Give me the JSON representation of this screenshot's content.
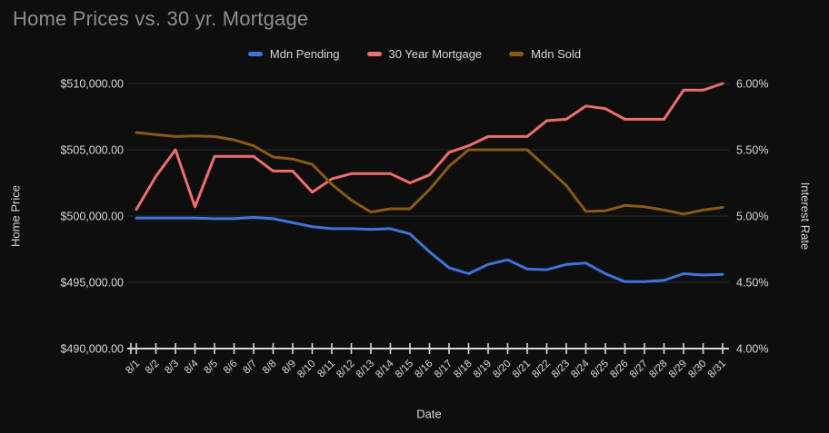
{
  "title": "Home Prices vs. 30 yr. Mortgage",
  "axes": {
    "left_title": "Home Price",
    "right_title": "Interest Rate",
    "x_title": "Date",
    "left_tick_labels": [
      "$490,000.00",
      "$495,000.00",
      "$500,000.00",
      "$505,000.00",
      "$510,000.00"
    ],
    "right_tick_labels": [
      "4.00%",
      "4.50%",
      "5.00%",
      "5.50%",
      "6.00%"
    ]
  },
  "colors": {
    "background": "#0e0e0e",
    "title_text": "#8e8e8e",
    "label_text": "#d8d8d8",
    "grid_line": "#2e2e2e",
    "axis_line": "#d8d8d8",
    "mdn_pending": "#3d74dc",
    "mortgage_30yr": "#ed6e6e",
    "mdn_sold": "#8a5a12"
  },
  "chart_data": {
    "type": "line",
    "title": "Home Prices vs. 30 yr. Mortgage",
    "xlabel": "Date",
    "ylabel_left": "Home Price",
    "ylabel_right": "Interest Rate",
    "legend_position": "top",
    "grid": "horizontal-only",
    "x": [
      "8/1",
      "8/2",
      "8/3",
      "8/4",
      "8/5",
      "8/6",
      "8/7",
      "8/8",
      "8/9",
      "8/10",
      "8/11",
      "8/12",
      "8/13",
      "8/14",
      "8/15",
      "8/16",
      "8/17",
      "8/18",
      "8/19",
      "8/20",
      "8/21",
      "8/22",
      "8/23",
      "8/24",
      "8/25",
      "8/26",
      "8/27",
      "8/28",
      "8/29",
      "8/30",
      "8/31"
    ],
    "left_axis": {
      "title": "Home Price",
      "range": [
        490000,
        510000
      ],
      "ticks": [
        490000,
        495000,
        500000,
        505000,
        510000
      ],
      "format": "currency"
    },
    "right_axis": {
      "title": "Interest Rate",
      "range": [
        4.0,
        6.0
      ],
      "ticks": [
        4.0,
        4.5,
        5.0,
        5.5,
        6.0
      ],
      "format": "percent"
    },
    "series": [
      {
        "name": "Mdn Pending",
        "axis": "left",
        "color": "#3d74dc",
        "values": [
          499850,
          499850,
          499850,
          499850,
          499800,
          499800,
          499900,
          499800,
          499500,
          499200,
          499050,
          499050,
          499000,
          499050,
          498650,
          497300,
          496100,
          495650,
          496350,
          496700,
          496000,
          495950,
          496350,
          496450,
          495650,
          495050,
          495050,
          495150,
          495650,
          495550,
          495600
        ]
      },
      {
        "name": "30 Year Mortgage",
        "axis": "right",
        "color": "#ed6e6e",
        "values": [
          5.05,
          5.3,
          5.5,
          5.07,
          5.45,
          5.45,
          5.45,
          5.34,
          5.34,
          5.18,
          5.28,
          5.32,
          5.32,
          5.32,
          5.25,
          5.31,
          5.48,
          5.53,
          5.6,
          5.6,
          5.6,
          5.72,
          5.73,
          5.83,
          5.81,
          5.73,
          5.73,
          5.73,
          5.95,
          5.95,
          6.0
        ]
      },
      {
        "name": "Mdn Sold",
        "axis": "left",
        "color": "#8a5a12",
        "values": [
          506300,
          506150,
          506000,
          506050,
          506000,
          505750,
          505300,
          504450,
          504300,
          503900,
          502400,
          501200,
          500300,
          500550,
          500550,
          502000,
          503750,
          505000,
          505000,
          505000,
          505000,
          503650,
          502300,
          500350,
          500400,
          500800,
          500700,
          500450,
          500150,
          500450,
          500650
        ]
      }
    ]
  }
}
